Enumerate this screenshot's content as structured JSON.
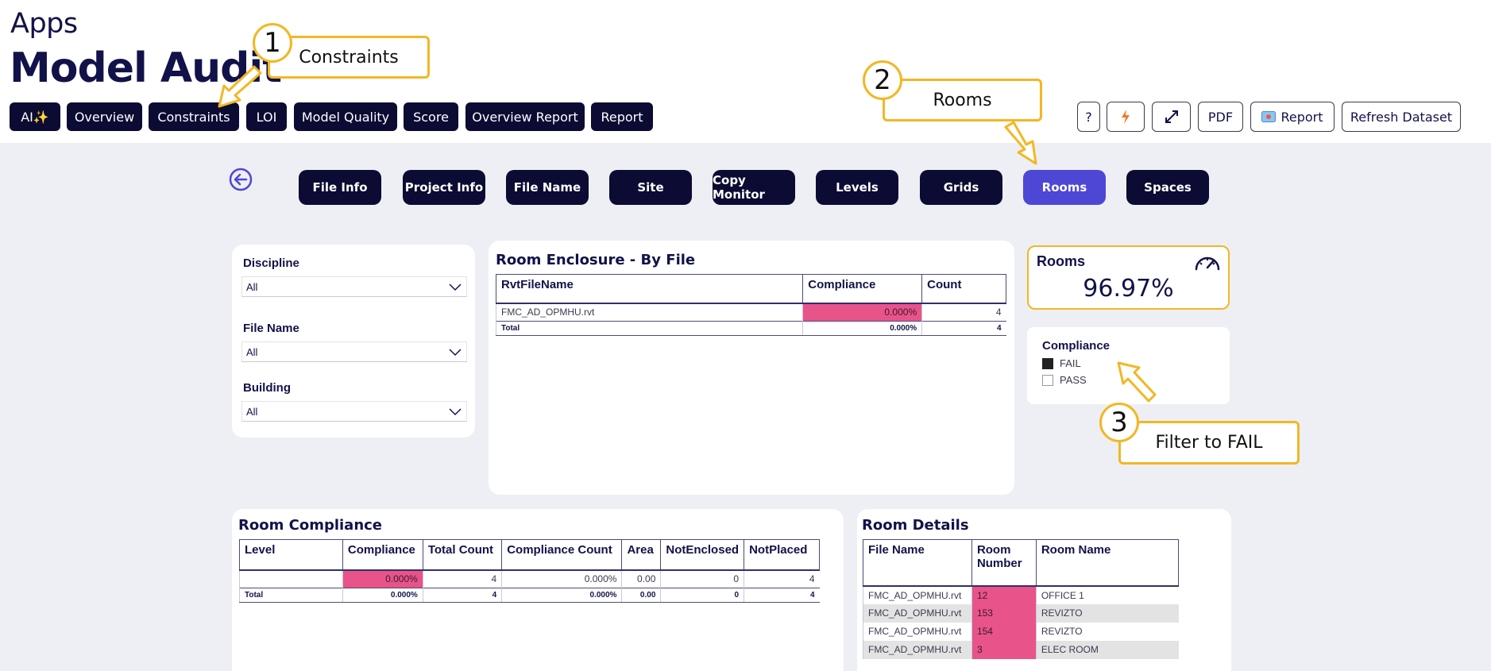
{
  "header": {
    "app_label": "Apps",
    "title": "Model Audit",
    "nav": [
      {
        "label": "AI✨"
      },
      {
        "label": "Overview"
      },
      {
        "label": "Constraints"
      },
      {
        "label": "LOI"
      },
      {
        "label": "Model Quality"
      },
      {
        "label": "Score"
      },
      {
        "label": "Overview Report"
      },
      {
        "label": "Report"
      }
    ],
    "tools": {
      "help": "?",
      "pdf": "PDF",
      "report": "Report",
      "refresh": "Refresh Dataset"
    }
  },
  "subnav": [
    {
      "label": "File Info"
    },
    {
      "label": "Project Info"
    },
    {
      "label": "File Name"
    },
    {
      "label": "Site"
    },
    {
      "label": "Copy Monitor"
    },
    {
      "label": "Levels"
    },
    {
      "label": "Grids"
    },
    {
      "label": "Rooms",
      "active": true
    },
    {
      "label": "Spaces"
    }
  ],
  "filters": {
    "discipline": {
      "label": "Discipline",
      "value": "All"
    },
    "file_name": {
      "label": "File Name",
      "value": "All"
    },
    "building": {
      "label": "Building",
      "value": "All"
    }
  },
  "enclosure": {
    "title": "Room Enclosure - By File",
    "columns": [
      "RvtFileName",
      "Compliance",
      "Count"
    ],
    "rows": [
      {
        "file": "FMC_AD_OPMHU.rvt",
        "compliance": "0.000%",
        "count": "4"
      }
    ],
    "total": {
      "label": "Total",
      "compliance": "0.000%",
      "count": "4"
    }
  },
  "kpi": {
    "title": "Rooms",
    "value": "96.97%"
  },
  "legend": {
    "title": "Compliance",
    "items": [
      {
        "label": "FAIL",
        "checked": true
      },
      {
        "label": "PASS",
        "checked": false
      }
    ]
  },
  "room_compliance": {
    "title": "Room Compliance",
    "columns": [
      "Level",
      "Compliance",
      "Total Count",
      "Compliance Count",
      "Area",
      "NotEnclosed",
      "NotPlaced"
    ],
    "rows": [
      {
        "level": "",
        "compliance": "0.000%",
        "total_count": "4",
        "compliance_count": "0.000%",
        "area": "0.00",
        "not_enclosed": "0",
        "not_placed": "4"
      }
    ],
    "total": {
      "label": "Total",
      "compliance": "0.000%",
      "total_count": "4",
      "compliance_count": "0.000%",
      "area": "0.00",
      "not_enclosed": "0",
      "not_placed": "4"
    }
  },
  "room_details": {
    "title": "Room Details",
    "columns": [
      "File Name",
      "Room Number",
      "Room Name"
    ],
    "rows": [
      {
        "file": "FMC_AD_OPMHU.rvt",
        "number": "12",
        "name": "OFFICE 1"
      },
      {
        "file": "FMC_AD_OPMHU.rvt",
        "number": "153",
        "name": "REVIZTO"
      },
      {
        "file": "FMC_AD_OPMHU.rvt",
        "number": "154",
        "name": "REVIZTO"
      },
      {
        "file": "FMC_AD_OPMHU.rvt",
        "number": "3",
        "name": "ELEC ROOM"
      }
    ]
  },
  "callouts": [
    {
      "number": "1",
      "text": "Constraints"
    },
    {
      "number": "2",
      "text": "Rooms"
    },
    {
      "number": "3",
      "text": "Filter to FAIL"
    }
  ],
  "colors": {
    "navy": "#0b0b33",
    "accent": "#4e47d6",
    "fail_pink": "#e8538a",
    "callout_yellow": "#f2b724"
  }
}
